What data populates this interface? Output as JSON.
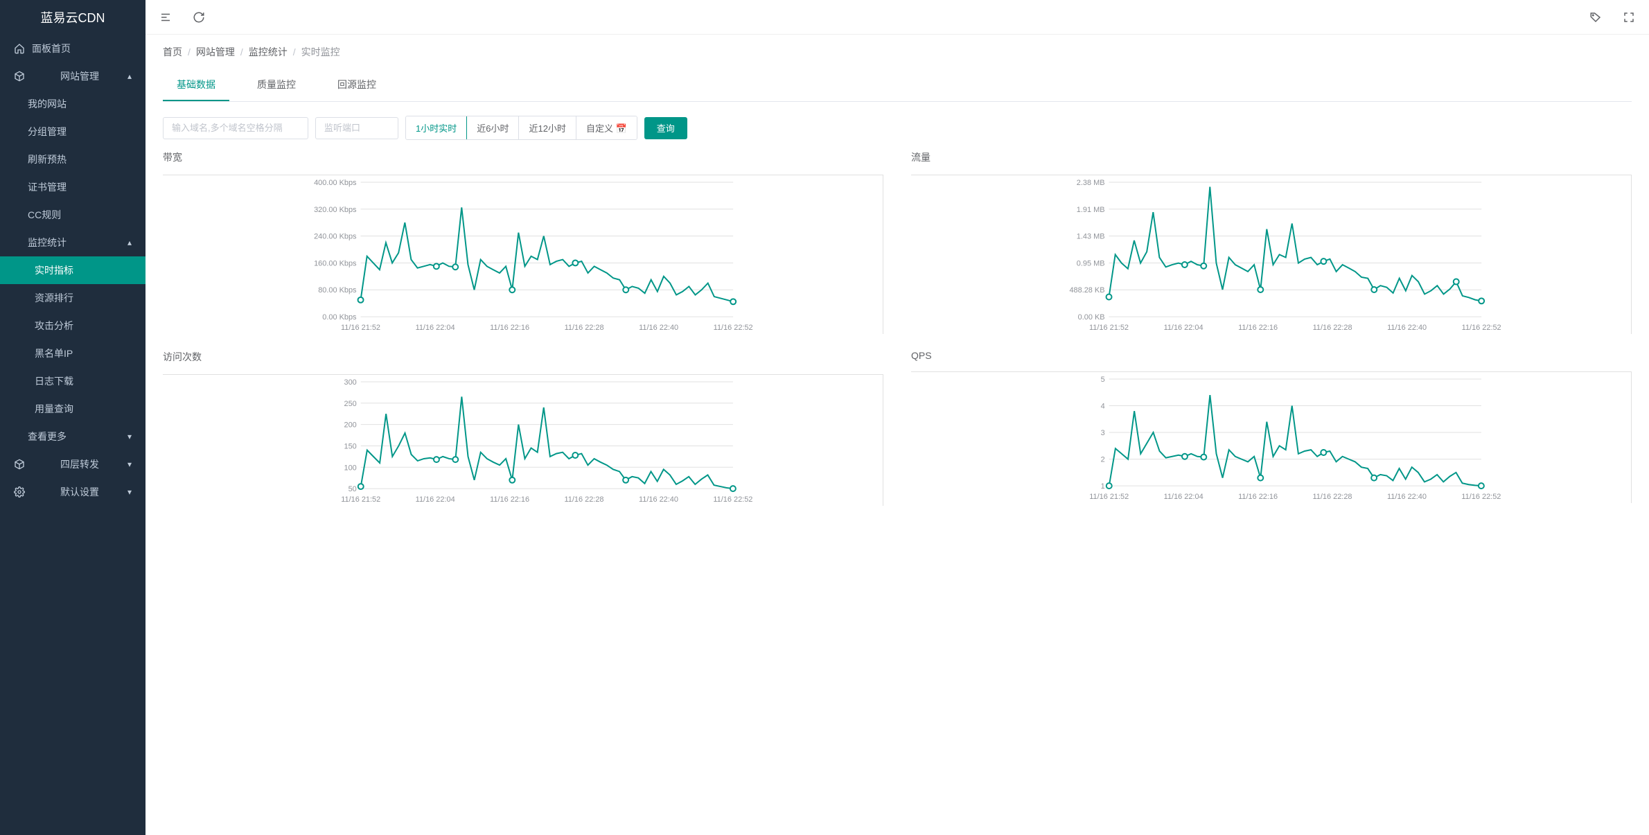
{
  "brand": "蓝易云CDN",
  "colors": {
    "sidebar_bg": "#1f2d3d",
    "accent": "#009688",
    "text": "#606266",
    "muted": "#909399",
    "grid": "#e0e0e0",
    "border": "#dcdfe6"
  },
  "sidebar": {
    "items": [
      {
        "label": "面板首页",
        "icon": "home"
      },
      {
        "label": "网站管理",
        "icon": "cube",
        "expanded": true,
        "children": [
          {
            "label": "我的网站"
          },
          {
            "label": "分组管理"
          },
          {
            "label": "刷新预热"
          },
          {
            "label": "证书管理"
          },
          {
            "label": "CC规则"
          },
          {
            "label": "监控统计",
            "expanded": true,
            "children": [
              {
                "label": "实时指标",
                "active": true
              },
              {
                "label": "资源排行"
              },
              {
                "label": "攻击分析"
              },
              {
                "label": "黑名单IP"
              },
              {
                "label": "日志下载"
              },
              {
                "label": "用量查询"
              }
            ]
          },
          {
            "label": "查看更多",
            "arrow": "down"
          }
        ]
      },
      {
        "label": "四层转发",
        "icon": "cube",
        "arrow": "down"
      },
      {
        "label": "默认设置",
        "icon": "gear",
        "arrow": "down"
      }
    ]
  },
  "breadcrumb": [
    "首页",
    "网站管理",
    "监控统计",
    "实时监控"
  ],
  "tabs": [
    {
      "label": "基础数据",
      "active": true
    },
    {
      "label": "质量监控"
    },
    {
      "label": "回源监控"
    }
  ],
  "filters": {
    "domain_placeholder": "输入域名,多个域名空格分隔",
    "port_placeholder": "监听端口",
    "time_ranges": [
      {
        "label": "1小时实时",
        "active": true
      },
      {
        "label": "近6小时"
      },
      {
        "label": "近12小时"
      },
      {
        "label": "自定义 📅"
      }
    ],
    "query_btn": "查询"
  },
  "charts": {
    "x_labels": [
      "11/16 21:52",
      "11/16 22:04",
      "11/16 22:16",
      "11/16 22:28",
      "11/16 22:40",
      "11/16 22:52"
    ],
    "line_color": "#009688",
    "line_width": 2,
    "marker_radius": 4,
    "bandwidth": {
      "title": "带宽",
      "type": "line",
      "y_labels": [
        "400.00 Kbps",
        "320.00 Kbps",
        "240.00 Kbps",
        "160.00 Kbps",
        "80.00 Kbps",
        "0.00 Kbps"
      ],
      "ylim": [
        0,
        400
      ],
      "values": [
        50,
        180,
        160,
        140,
        220,
        160,
        190,
        280,
        170,
        145,
        150,
        155,
        150,
        160,
        150,
        148,
        325,
        155,
        80,
        170,
        150,
        140,
        130,
        150,
        80,
        250,
        150,
        180,
        170,
        240,
        155,
        165,
        170,
        150,
        160,
        165,
        130,
        150,
        140,
        130,
        115,
        110,
        80,
        90,
        85,
        70,
        110,
        75,
        120,
        100,
        65,
        75,
        90,
        65,
        80,
        100,
        60,
        55,
        50,
        45
      ],
      "markers": [
        0,
        12,
        15,
        24,
        34,
        42,
        59
      ]
    },
    "traffic": {
      "title": "流量",
      "type": "line",
      "y_labels": [
        "2.38 MB",
        "1.91 MB",
        "1.43 MB",
        "0.95 MB",
        "488.28 KB",
        "0.00 KB"
      ],
      "ylim": [
        0,
        2.38
      ],
      "values": [
        0.35,
        1.1,
        0.95,
        0.85,
        1.35,
        0.95,
        1.15,
        1.85,
        1.05,
        0.88,
        0.92,
        0.95,
        0.92,
        0.98,
        0.92,
        0.9,
        2.3,
        0.95,
        0.48,
        1.05,
        0.92,
        0.86,
        0.8,
        0.92,
        0.48,
        1.55,
        0.92,
        1.1,
        1.05,
        1.65,
        0.95,
        1.02,
        1.05,
        0.92,
        0.98,
        1.02,
        0.8,
        0.92,
        0.86,
        0.8,
        0.7,
        0.68,
        0.48,
        0.55,
        0.52,
        0.42,
        0.68,
        0.46,
        0.73,
        0.62,
        0.4,
        0.46,
        0.55,
        0.4,
        0.49,
        0.62,
        0.37,
        0.34,
        0.3,
        0.28
      ],
      "markers": [
        0,
        12,
        15,
        24,
        34,
        42,
        55,
        59
      ]
    },
    "visits": {
      "title": "访问次数",
      "type": "line",
      "y_labels": [
        "300",
        "250",
        "200",
        "150",
        "100",
        "50"
      ],
      "ylim": [
        50,
        300
      ],
      "values": [
        55,
        140,
        125,
        110,
        225,
        125,
        150,
        180,
        130,
        115,
        120,
        122,
        118,
        125,
        120,
        118,
        265,
        125,
        70,
        135,
        120,
        112,
        105,
        120,
        70,
        200,
        120,
        145,
        135,
        240,
        125,
        132,
        135,
        120,
        128,
        132,
        105,
        120,
        112,
        105,
        95,
        90,
        70,
        78,
        75,
        62,
        90,
        67,
        95,
        82,
        60,
        68,
        78,
        60,
        72,
        82,
        58,
        55,
        52,
        50
      ],
      "markers": [
        0,
        12,
        15,
        24,
        34,
        42,
        59
      ]
    },
    "qps": {
      "title": "QPS",
      "type": "line",
      "y_labels": [
        "5",
        "4",
        "3",
        "2",
        "1"
      ],
      "ylim": [
        1,
        5
      ],
      "values": [
        1.0,
        2.4,
        2.2,
        2.0,
        3.8,
        2.2,
        2.6,
        3.0,
        2.3,
        2.05,
        2.1,
        2.15,
        2.1,
        2.2,
        2.1,
        2.08,
        4.4,
        2.2,
        1.3,
        2.35,
        2.1,
        2.0,
        1.9,
        2.1,
        1.3,
        3.4,
        2.1,
        2.5,
        2.35,
        4.0,
        2.2,
        2.3,
        2.35,
        2.1,
        2.25,
        2.3,
        1.9,
        2.1,
        2.0,
        1.9,
        1.7,
        1.65,
        1.3,
        1.42,
        1.38,
        1.2,
        1.65,
        1.25,
        1.7,
        1.5,
        1.15,
        1.25,
        1.42,
        1.15,
        1.35,
        1.5,
        1.1,
        1.05,
        1.02,
        1.0
      ],
      "markers": [
        0,
        12,
        15,
        24,
        34,
        42,
        59
      ]
    }
  }
}
